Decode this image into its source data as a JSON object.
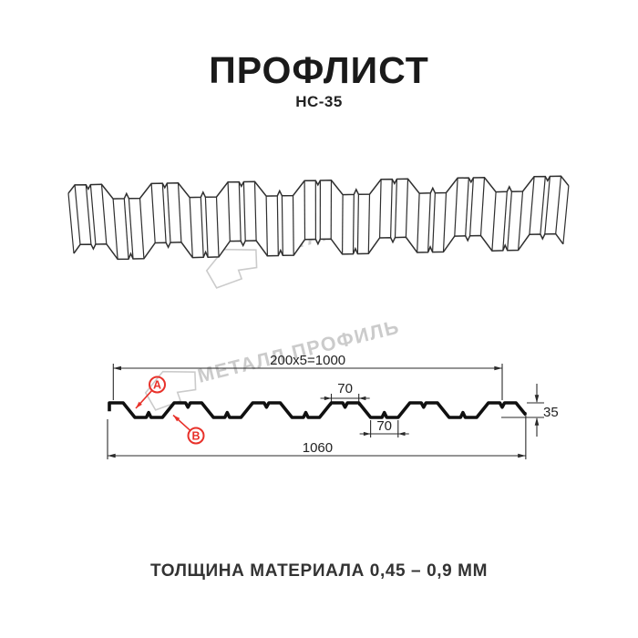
{
  "header": {
    "title": "ПРОФЛИСТ",
    "model": "НС-35"
  },
  "watermark": {
    "text": "МЕТАЛЛ ПРОФИЛЬ",
    "color": "#cbcbcb"
  },
  "diagram": {
    "dimensions": {
      "coverage": "200x5=1000",
      "rib_top_width": "70",
      "rib_bottom_width": "70",
      "overall_width": "1060",
      "height": "35"
    },
    "callouts": [
      {
        "label": "A"
      },
      {
        "label": "B"
      }
    ],
    "callout_color": "#e8312a",
    "line_color": "#2f2f2f",
    "profile_stroke_color": "#101010",
    "dim_color": "#2a2a2a"
  },
  "footer": {
    "thickness_note": "ТОЛЩИНА МАТЕРИАЛА 0,45 – 0,9 ММ"
  }
}
